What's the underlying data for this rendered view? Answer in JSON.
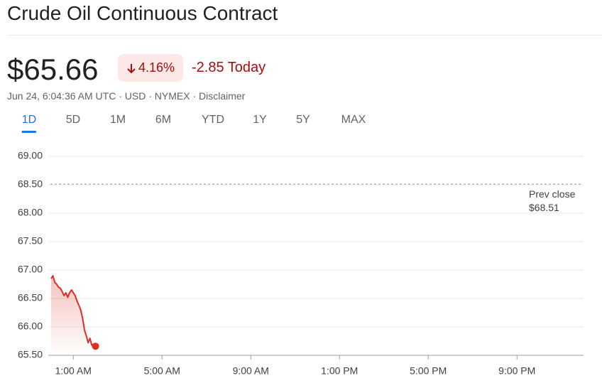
{
  "header": {
    "title": "Crude Oil Continuous Contract",
    "price": "$65.66",
    "change_percent": "4.16%",
    "change": "-2.85 Today",
    "meta": "Jun 24, 6:04:36 AM UTC · USD · NYMEX ·",
    "disclaimer": "Disclaimer"
  },
  "tabs": [
    "1D",
    "5D",
    "1M",
    "6M",
    "YTD",
    "1Y",
    "5Y",
    "MAX"
  ],
  "chart_data": {
    "type": "line",
    "color": "#d93025",
    "grid": true,
    "x": [
      0,
      0.08,
      0.17,
      0.25,
      0.33,
      0.42,
      0.5,
      0.58,
      0.67,
      0.75,
      0.83,
      0.92,
      1,
      1.08,
      1.17,
      1.25,
      1.33,
      1.42,
      1.5,
      1.58,
      1.67,
      1.75,
      1.83,
      1.92,
      2
    ],
    "values": [
      66.85,
      66.9,
      66.78,
      66.75,
      66.7,
      66.68,
      66.62,
      66.55,
      66.6,
      66.52,
      66.6,
      66.65,
      66.6,
      66.55,
      66.45,
      66.38,
      66.3,
      66.15,
      65.95,
      65.85,
      65.72,
      65.8,
      65.68,
      65.7,
      65.66
    ],
    "xlim": [
      0,
      24
    ],
    "xticks": [
      {
        "value": 1,
        "label": "1:00 AM"
      },
      {
        "value": 5,
        "label": "5:00 AM"
      },
      {
        "value": 9,
        "label": "9:00 AM"
      },
      {
        "value": 13,
        "label": "1:00 PM"
      },
      {
        "value": 17,
        "label": "5:00 PM"
      },
      {
        "value": 21,
        "label": "9:00 PM"
      }
    ],
    "ylim": [
      65.5,
      69
    ],
    "yticks": [
      {
        "value": 65.5,
        "label": "65.50"
      },
      {
        "value": 66,
        "label": "66.00"
      },
      {
        "value": 66.5,
        "label": "66.50"
      },
      {
        "value": 67,
        "label": "67.00"
      },
      {
        "value": 67.5,
        "label": "67.50"
      },
      {
        "value": 68,
        "label": "68.00"
      },
      {
        "value": 68.5,
        "label": "68.50"
      },
      {
        "value": 69,
        "label": "69.00"
      }
    ],
    "prev_close": {
      "label": "Prev close",
      "value": 68.51,
      "value_label": "$68.51"
    }
  }
}
